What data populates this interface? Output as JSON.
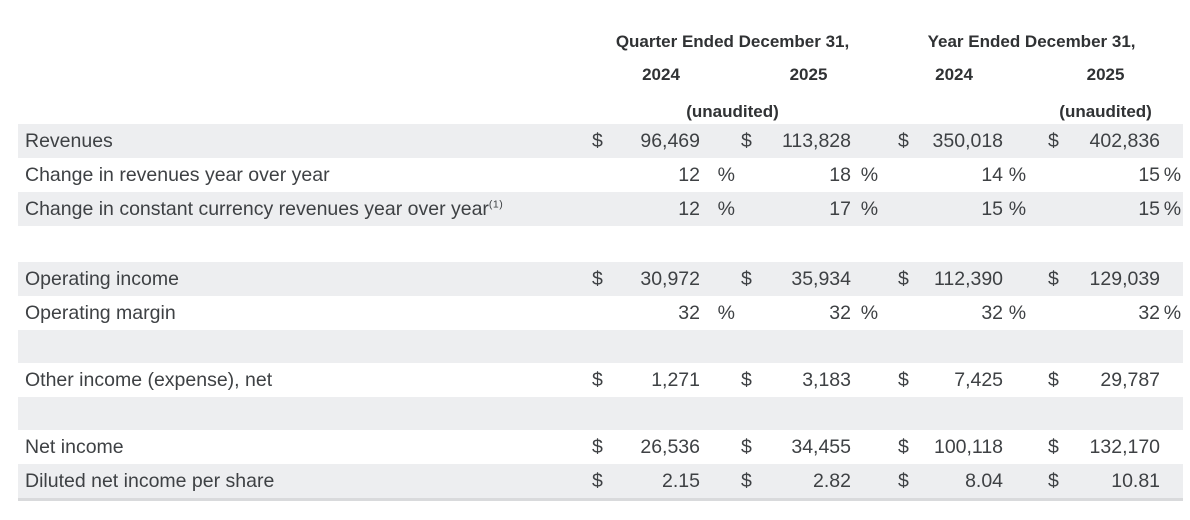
{
  "table": {
    "currency_symbol": "$",
    "percent_symbol": "%",
    "groups": [
      {
        "title": "Quarter Ended December 31,",
        "years": [
          "2024",
          "2025"
        ],
        "note": "(unaudited)"
      },
      {
        "title": "Year Ended December 31,",
        "years": [
          "2024",
          "2025"
        ],
        "note": "(unaudited)"
      }
    ],
    "rows": [
      {
        "label": "Revenues",
        "sup": "",
        "type": "currency",
        "band": "gray",
        "values": [
          "96,469",
          "113,828",
          "350,018",
          "402,836"
        ]
      },
      {
        "label": "Change in revenues year over year",
        "sup": "",
        "type": "percent",
        "band": "white",
        "values": [
          "12",
          "18",
          "14",
          "15"
        ]
      },
      {
        "label": "Change in constant currency revenues year over year",
        "sup": "(1)",
        "type": "percent",
        "band": "gray",
        "values": [
          "12",
          "17",
          "15",
          "15"
        ]
      },
      {
        "type": "spacer",
        "band": "white"
      },
      {
        "label": "Operating income",
        "sup": "",
        "type": "currency",
        "band": "gray",
        "values": [
          "30,972",
          "35,934",
          "112,390",
          "129,039"
        ]
      },
      {
        "label": "Operating margin",
        "sup": "",
        "type": "percent",
        "band": "white",
        "values": [
          "32",
          "32",
          "32",
          "32"
        ]
      },
      {
        "type": "spacer",
        "band": "gray"
      },
      {
        "label": "Other income (expense), net",
        "sup": "",
        "type": "currency",
        "band": "white",
        "values": [
          "1,271",
          "3,183",
          "7,425",
          "29,787"
        ]
      },
      {
        "type": "spacer",
        "band": "gray"
      },
      {
        "label": "Net income",
        "sup": "",
        "type": "currency",
        "band": "white",
        "values": [
          "26,536",
          "34,455",
          "100,118",
          "132,170"
        ]
      },
      {
        "label": "Diluted net income per share",
        "sup": "",
        "type": "currency",
        "band": "gray",
        "values": [
          "2.15",
          "2.82",
          "8.04",
          "10.81"
        ]
      }
    ]
  },
  "colors": {
    "band_gray": "#edeef0",
    "body_text": "#3e4144",
    "header_text": "#303234",
    "bottom_rule": "#d9dadc"
  }
}
